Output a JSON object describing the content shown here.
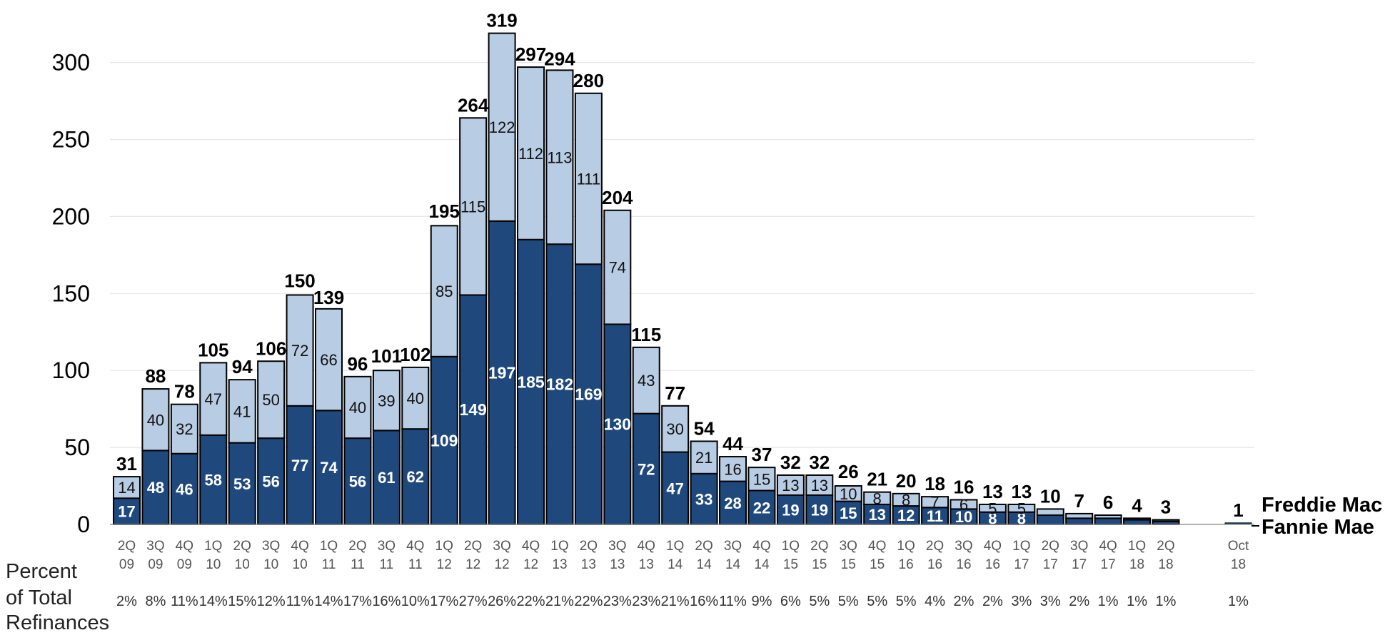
{
  "chart_data": {
    "type": "bar",
    "stacked": true,
    "title": "",
    "xlabel": "",
    "ylabel": "",
    "ylim": [
      0,
      330
    ],
    "yticks": [
      0,
      50,
      100,
      150,
      200,
      250,
      300
    ],
    "grid": true,
    "colors": {
      "fannie": "#1f497d",
      "freddie": "#b8cce4",
      "outline": "#000000",
      "grid": "#e6e6e6"
    },
    "categories": [
      "2Q 09",
      "3Q 09",
      "4Q 09",
      "1Q 10",
      "2Q 10",
      "3Q 10",
      "4Q 10",
      "1Q 11",
      "2Q 11",
      "3Q 11",
      "4Q 11",
      "1Q 12",
      "2Q 12",
      "3Q 12",
      "4Q 12",
      "1Q 13",
      "2Q 13",
      "3Q 13",
      "4Q 13",
      "1Q 14",
      "2Q 14",
      "3Q 14",
      "4Q 14",
      "1Q 15",
      "2Q 15",
      "3Q 15",
      "4Q 15",
      "1Q 16",
      "2Q 16",
      "3Q 16",
      "4Q 16",
      "1Q 17",
      "2Q 17",
      "3Q 17",
      "4Q 17",
      "1Q 18",
      "2Q 18",
      "Oct 18"
    ],
    "series": [
      {
        "name": "Fannie Mae",
        "values": [
          17,
          48,
          46,
          58,
          53,
          56,
          77,
          74,
          56,
          61,
          62,
          109,
          149,
          197,
          185,
          182,
          169,
          130,
          72,
          47,
          33,
          28,
          22,
          19,
          19,
          15,
          13,
          12,
          11,
          10,
          8,
          8,
          6,
          4,
          4,
          3,
          2,
          1
        ]
      },
      {
        "name": "Freddie Mac",
        "values": [
          14,
          40,
          32,
          47,
          41,
          50,
          72,
          66,
          40,
          39,
          40,
          85,
          115,
          122,
          112,
          113,
          111,
          74,
          43,
          30,
          21,
          16,
          15,
          13,
          13,
          10,
          8,
          8,
          7,
          6,
          5,
          5,
          4,
          3,
          2,
          1,
          1,
          0
        ]
      }
    ],
    "inner_labels": {
      "fannie": [
        "17",
        "48",
        "46",
        "58",
        "53",
        "56",
        "77",
        "74",
        "56",
        "61",
        "62",
        "109",
        "149",
        "197",
        "185",
        "182",
        "169",
        "130",
        "72",
        "47",
        "33",
        "28",
        "22",
        "19",
        "19",
        "15",
        "13",
        "12",
        "11",
        "10",
        "8",
        "8",
        "",
        "",
        "",
        "",
        "",
        ""
      ],
      "freddie": [
        "14",
        "40",
        "32",
        "47",
        "41",
        "50",
        "72",
        "66",
        "40",
        "39",
        "40",
        "85",
        "115",
        "122",
        "112",
        "113",
        "111",
        "74",
        "43",
        "30",
        "21",
        "16",
        "15",
        "13",
        "13",
        "10",
        "8",
        "8",
        "7",
        "6",
        "5",
        "5",
        "",
        "",
        "",
        "",
        "",
        ""
      ]
    },
    "totals": [
      31,
      88,
      78,
      105,
      94,
      106,
      150,
      139,
      96,
      101,
      102,
      195,
      264,
      319,
      297,
      294,
      280,
      204,
      115,
      77,
      54,
      44,
      37,
      32,
      32,
      26,
      21,
      20,
      18,
      16,
      13,
      13,
      10,
      7,
      6,
      4,
      3,
      1
    ],
    "percent_of_total_refinances": [
      "2%",
      "8%",
      "11%",
      "14%",
      "15%",
      "12%",
      "11%",
      "14%",
      "17%",
      "16%",
      "10%",
      "17%",
      "27%",
      "26%",
      "22%",
      "21%",
      "22%",
      "23%",
      "23%",
      "21%",
      "16%",
      "11%",
      "9%",
      "6%",
      "5%",
      "5%",
      "5%",
      "5%",
      "4%",
      "2%",
      "2%",
      "3%",
      "3%",
      "2%",
      "1%",
      "1%",
      "1%",
      "1%"
    ],
    "percent_row_title": [
      "Percent",
      "of  Total",
      "Refinances"
    ],
    "legend": [
      "Freddie Mac",
      "Fannie Mae"
    ],
    "legend_placement": "right-end"
  }
}
